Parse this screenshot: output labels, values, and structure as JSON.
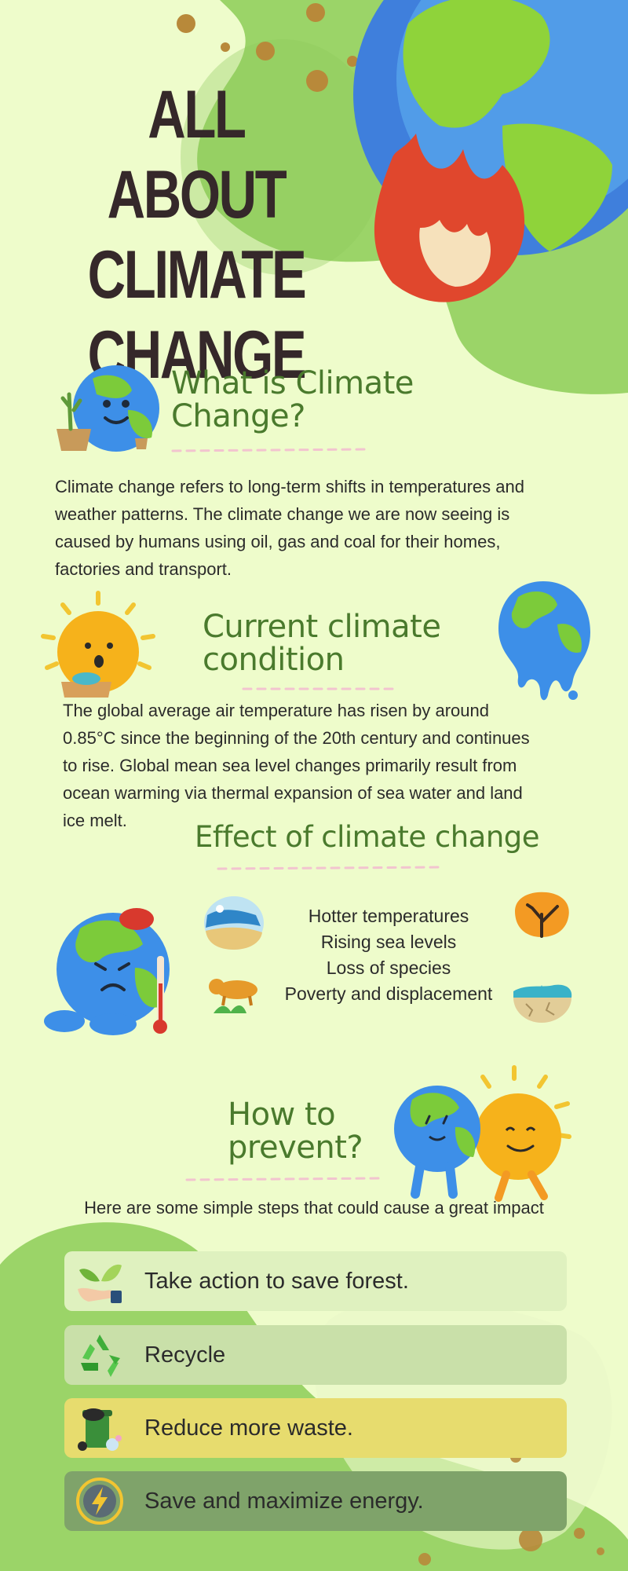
{
  "title": {
    "line1": "ALL ABOUT",
    "line2": "CLIMATE",
    "line3": "CHANGE"
  },
  "section1": {
    "heading_line1": "What is Climate",
    "heading_line2": "Change?",
    "body_lines": [
      "Climate change refers to long-term shifts in temperatures and",
      "weather patterns. The climate change we are now seeing is",
      "caused by humans using oil, gas and coal for their homes,",
      "factories and transport."
    ]
  },
  "section2": {
    "heading_line1": "Current climate",
    "heading_line2": "condition",
    "body_lines": [
      "The global average air temperature has risen by around",
      "0.85°C since the beginning of the 20th century and continues",
      "to rise. Global mean sea level changes primarily result from",
      "ocean warming via thermal expansion of sea water and land",
      "ice melt."
    ]
  },
  "section3": {
    "heading": "Effect of climate change",
    "effects": [
      "Hotter temperatures",
      "Rising sea levels",
      "Loss of species",
      "Poverty and displacement"
    ]
  },
  "section4": {
    "heading_line1": "How to",
    "heading_line2": "prevent?",
    "intro": "Here are some simple steps that could cause a great impact",
    "steps": [
      {
        "label": "Take action to save forest.",
        "icon": "plant-hand-icon",
        "color": "#dff1bf"
      },
      {
        "label": "Recycle",
        "icon": "recycle-icon",
        "color": "#c9e0a9"
      },
      {
        "label": "Reduce more waste.",
        "icon": "trash-bin-icon",
        "color": "#e7dc6e"
      },
      {
        "label": "Save and maximize energy.",
        "icon": "energy-bolt-icon",
        "color": "#7fa36a"
      }
    ]
  },
  "colors": {
    "background": "#eefccb",
    "blob_green": "#9bd468",
    "heading_green": "#4a7a2d",
    "title_dark": "#35282a",
    "dot_brown": "#b8893a",
    "dash_pink": "#f2c4cf"
  }
}
